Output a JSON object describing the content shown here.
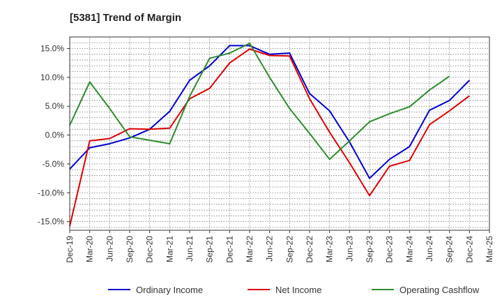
{
  "chart_data": {
    "type": "line",
    "title": "[5381]  Trend of Margin",
    "xlabel": "",
    "ylabel": "",
    "x": [
      "Dec-19",
      "Mar-20",
      "Jun-20",
      "Sep-20",
      "Dec-20",
      "Mar-21",
      "Jun-21",
      "Sep-21",
      "Dec-21",
      "Mar-22",
      "Jun-22",
      "Sep-22",
      "Dec-22",
      "Mar-23",
      "Jun-23",
      "Sep-23",
      "Dec-23",
      "Mar-24",
      "Jun-24",
      "Sep-24",
      "Dec-24",
      "Mar-25"
    ],
    "ylim": [
      -16.5,
      17.0
    ],
    "yticks": [
      15.0,
      10.0,
      5.0,
      0.0,
      -5.0,
      -10.0,
      -15.0
    ],
    "ytick_labels": [
      "15.0%",
      "10.0%",
      "5.0%",
      "0.0%",
      "-5.0%",
      "-10.0%",
      "-15.0%"
    ],
    "grid": true,
    "legend_position": "bottom",
    "series": [
      {
        "name": "Ordinary Income",
        "color": "#0000cc",
        "values": [
          -5.9,
          -2.2,
          -1.5,
          -0.5,
          1.0,
          4.1,
          9.5,
          12.0,
          15.5,
          15.5,
          14.0,
          14.2,
          7.2,
          4.2,
          -1.2,
          -7.5,
          -4.2,
          -2.0,
          4.3,
          6.0,
          9.5,
          null
        ]
      },
      {
        "name": "Net Income",
        "color": "#dd0000",
        "values": [
          -15.8,
          -1.0,
          -0.6,
          1.1,
          1.0,
          1.2,
          6.3,
          8.1,
          12.5,
          14.9,
          13.8,
          13.7,
          6.3,
          0.5,
          -4.8,
          -10.5,
          -5.4,
          -4.4,
          1.8,
          4.2,
          6.8,
          null
        ]
      },
      {
        "name": "Operating Cashflow",
        "color": "#2e8b2e",
        "values": [
          1.7,
          9.2,
          4.6,
          -0.3,
          -0.9,
          -1.5,
          6.7,
          13.3,
          14.2,
          15.9,
          10.0,
          4.6,
          0.3,
          -4.2,
          -1.0,
          2.3,
          3.7,
          4.9,
          7.8,
          10.2,
          null,
          null
        ]
      }
    ]
  }
}
